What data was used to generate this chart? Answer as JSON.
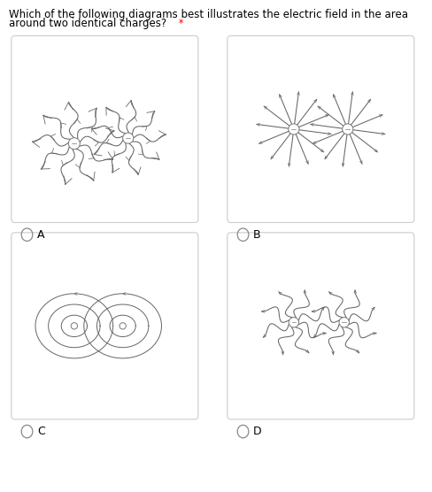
{
  "title_text": "Which of the following diagrams best illustrates the electric field in the area",
  "title_line2": "around two identical charges?",
  "title_star": " *",
  "background_color": "#ffffff",
  "panel_bg": "#ffffff",
  "panel_border": "#cccccc",
  "label_A": "A",
  "label_B": "B",
  "label_C": "C",
  "label_D": "D",
  "charge_color": "#ffffff",
  "charge_edge": "#777777",
  "line_color": "#666666",
  "font_size_title": 8.5,
  "font_size_label": 9
}
